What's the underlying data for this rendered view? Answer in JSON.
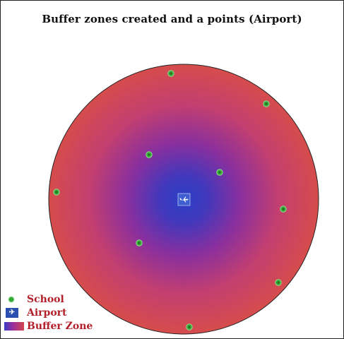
{
  "title": "Buffer zones created and a points (Airport)",
  "colors": {
    "buffer_center": "#2f44c8",
    "buffer_mid": "#8a2f9e",
    "buffer_edge": "#d24a4e",
    "school_fill": "#3aa43a",
    "airport_fill": "#2b4fb0",
    "legend_text": "#b3202a"
  },
  "map": {
    "airport": {
      "icon": "airplane-icon"
    },
    "school_count": 9
  },
  "legend": [
    {
      "key": "school",
      "label": "School",
      "icon": "school-point-icon"
    },
    {
      "key": "airport",
      "label": "Airport",
      "icon": "airport-icon"
    },
    {
      "key": "buffer",
      "label": "Buffer Zone",
      "icon": "buffer-zone-swatch"
    }
  ]
}
